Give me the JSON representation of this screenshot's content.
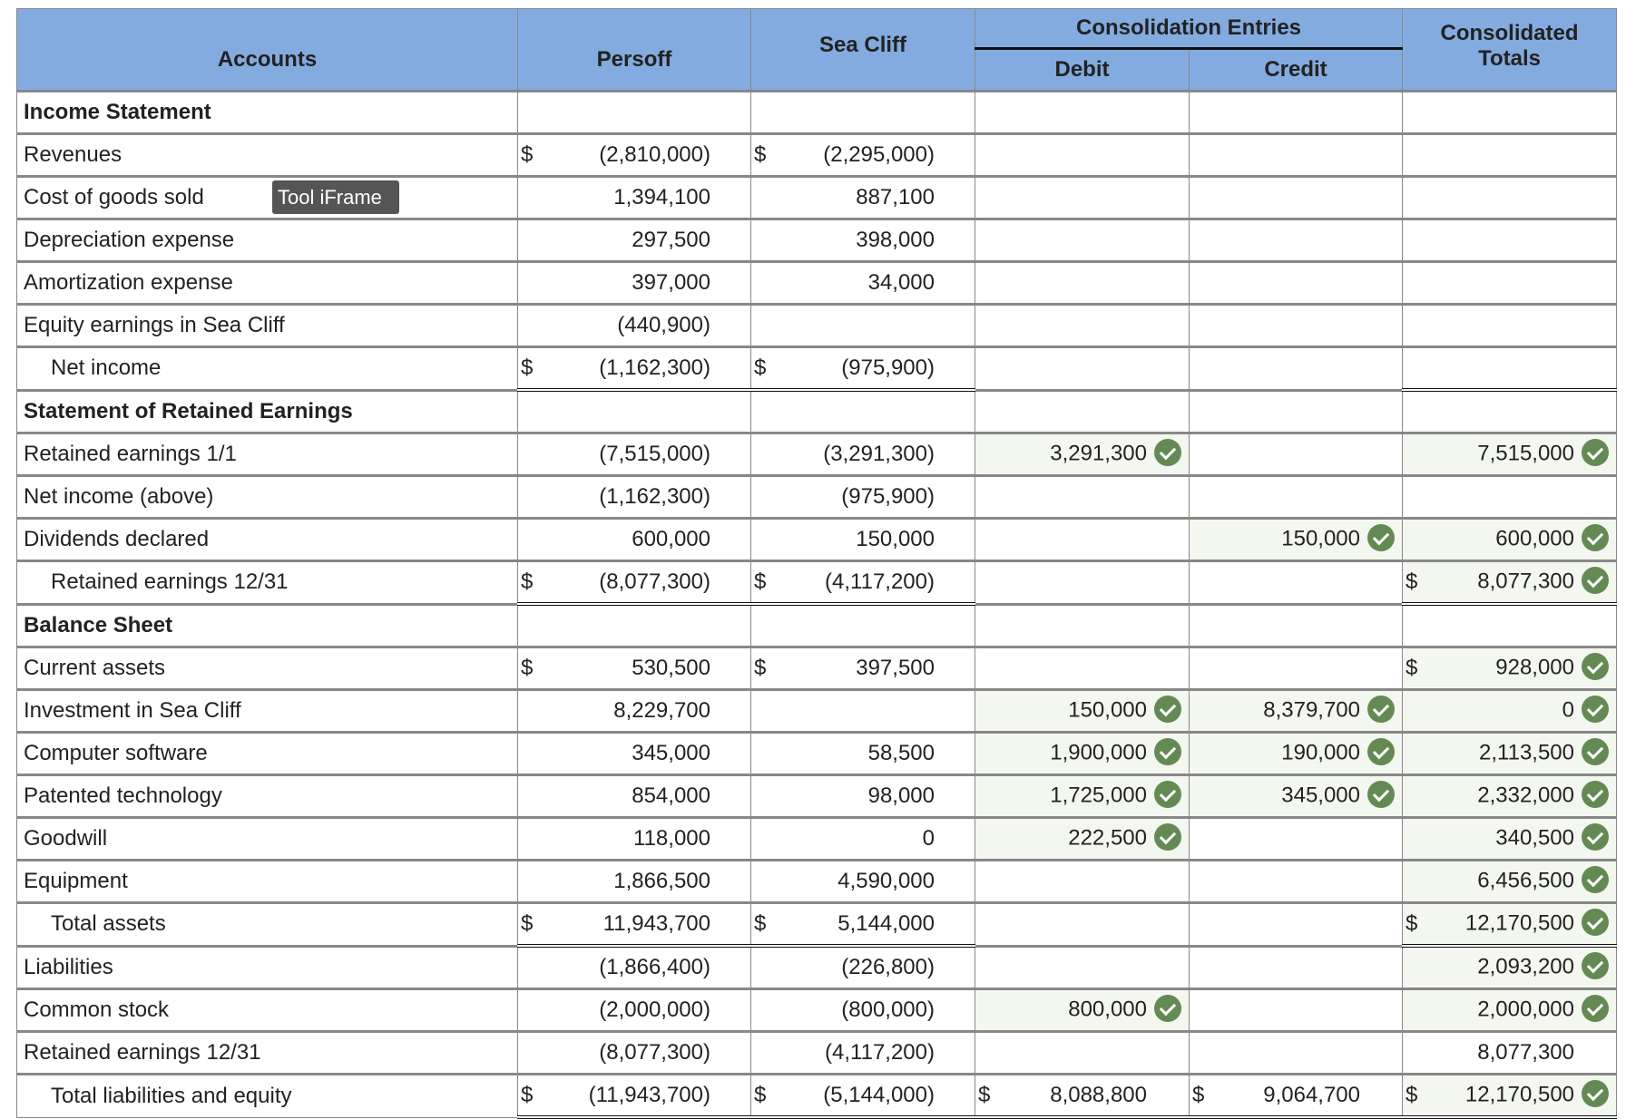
{
  "header": {
    "accounts": "Accounts",
    "persoff": "Persoff",
    "seacliff": "Sea Cliff",
    "consolidation_entries": "Consolidation Entries",
    "debit": "Debit",
    "credit": "Credit",
    "consolidated_totals": "Consolidated Totals"
  },
  "tooltip": "Tool iFrame",
  "rows": [
    {
      "label": "Income Statement",
      "section": true
    },
    {
      "label": "Revenues",
      "persoff": {
        "v": "(2,810,000)",
        "d": "$"
      },
      "seacliff": {
        "v": "(2,295,000)",
        "d": "$"
      }
    },
    {
      "label": "Cost of goods sold",
      "persoff": {
        "v": "1,394,100"
      },
      "seacliff": {
        "v": "887,100"
      }
    },
    {
      "label": "Depreciation expense",
      "persoff": {
        "v": "297,500"
      },
      "seacliff": {
        "v": "398,000"
      }
    },
    {
      "label": "Amortization expense",
      "persoff": {
        "v": "397,000"
      },
      "seacliff": {
        "v": "34,000"
      }
    },
    {
      "label": "Equity earnings in Sea Cliff",
      "persoff": {
        "v": "(440,900)"
      }
    },
    {
      "label": "Net income",
      "indent": true,
      "total": true,
      "persoff": {
        "v": "(1,162,300)",
        "d": "$"
      },
      "seacliff": {
        "v": "(975,900)",
        "d": "$"
      }
    },
    {
      "label": "Statement of Retained Earnings",
      "section": true
    },
    {
      "label": "Retained earnings 1/1",
      "persoff": {
        "v": "(7,515,000)"
      },
      "seacliff": {
        "v": "(3,291,300)"
      },
      "debit": {
        "v": "3,291,300",
        "ok": true
      },
      "totals": {
        "v": "7,515,000",
        "ok": true
      }
    },
    {
      "label": "Net income (above)",
      "persoff": {
        "v": "(1,162,300)"
      },
      "seacliff": {
        "v": "(975,900)"
      }
    },
    {
      "label": "Dividends declared",
      "persoff": {
        "v": "600,000"
      },
      "seacliff": {
        "v": "150,000"
      },
      "credit": {
        "v": "150,000",
        "ok": true
      },
      "totals": {
        "v": "600,000",
        "ok": true
      }
    },
    {
      "label": "Retained earnings 12/31",
      "indent": true,
      "total": true,
      "persoff": {
        "v": "(8,077,300)",
        "d": "$"
      },
      "seacliff": {
        "v": "(4,117,200)",
        "d": "$"
      },
      "totals": {
        "v": "8,077,300",
        "d": "$",
        "ok": true
      }
    },
    {
      "label": "Balance Sheet",
      "section": true
    },
    {
      "label": "Current assets",
      "persoff": {
        "v": "530,500",
        "d": "$"
      },
      "seacliff": {
        "v": "397,500",
        "d": "$"
      },
      "totals": {
        "v": "928,000",
        "d": "$",
        "ok": true
      }
    },
    {
      "label": "Investment in Sea Cliff",
      "persoff": {
        "v": "8,229,700"
      },
      "debit": {
        "v": "150,000",
        "ok": true
      },
      "credit": {
        "v": "8,379,700",
        "ok": true
      },
      "totals": {
        "v": "0",
        "ok": true
      }
    },
    {
      "label": "Computer software",
      "persoff": {
        "v": "345,000"
      },
      "seacliff": {
        "v": "58,500"
      },
      "debit": {
        "v": "1,900,000",
        "ok": true
      },
      "credit": {
        "v": "190,000",
        "ok": true
      },
      "totals": {
        "v": "2,113,500",
        "ok": true
      }
    },
    {
      "label": "Patented technology",
      "persoff": {
        "v": "854,000"
      },
      "seacliff": {
        "v": "98,000"
      },
      "debit": {
        "v": "1,725,000",
        "ok": true
      },
      "credit": {
        "v": "345,000",
        "ok": true
      },
      "totals": {
        "v": "2,332,000",
        "ok": true
      }
    },
    {
      "label": "Goodwill",
      "persoff": {
        "v": "118,000"
      },
      "seacliff": {
        "v": "0"
      },
      "debit": {
        "v": "222,500",
        "ok": true
      },
      "totals": {
        "v": "340,500",
        "ok": true
      }
    },
    {
      "label": "Equipment",
      "persoff": {
        "v": "1,866,500"
      },
      "seacliff": {
        "v": "4,590,000"
      },
      "totals": {
        "v": "6,456,500",
        "ok": true
      }
    },
    {
      "label": "Total assets",
      "indent": true,
      "total": true,
      "persoff": {
        "v": "11,943,700",
        "d": "$"
      },
      "seacliff": {
        "v": "5,144,000",
        "d": "$"
      },
      "totals": {
        "v": "12,170,500",
        "d": "$",
        "ok": true
      }
    },
    {
      "label": "Liabilities",
      "persoff": {
        "v": "(1,866,400)"
      },
      "seacliff": {
        "v": "(226,800)"
      },
      "totals": {
        "v": "2,093,200",
        "ok": true
      }
    },
    {
      "label": "Common stock",
      "persoff": {
        "v": "(2,000,000)"
      },
      "seacliff": {
        "v": "(800,000)"
      },
      "debit": {
        "v": "800,000",
        "ok": true
      },
      "totals": {
        "v": "2,000,000",
        "ok": true
      }
    },
    {
      "label": "Retained earnings 12/31",
      "persoff": {
        "v": "(8,077,300)"
      },
      "seacliff": {
        "v": "(4,117,200)"
      },
      "totals": {
        "v": "8,077,300"
      }
    },
    {
      "label": "Total liabilities and equity",
      "indent": true,
      "total": true,
      "persoff": {
        "v": "(11,943,700)",
        "d": "$"
      },
      "seacliff": {
        "v": "(5,144,000)",
        "d": "$"
      },
      "debit": {
        "v": "8,088,800",
        "d": "$"
      },
      "credit": {
        "v": "9,064,700",
        "d": "$"
      },
      "totals": {
        "v": "12,170,500",
        "d": "$",
        "ok": true
      }
    }
  ],
  "colors": {
    "header_bg": "#84abe0",
    "correct_bg": "#f4f7f0",
    "check": "#648a53"
  }
}
